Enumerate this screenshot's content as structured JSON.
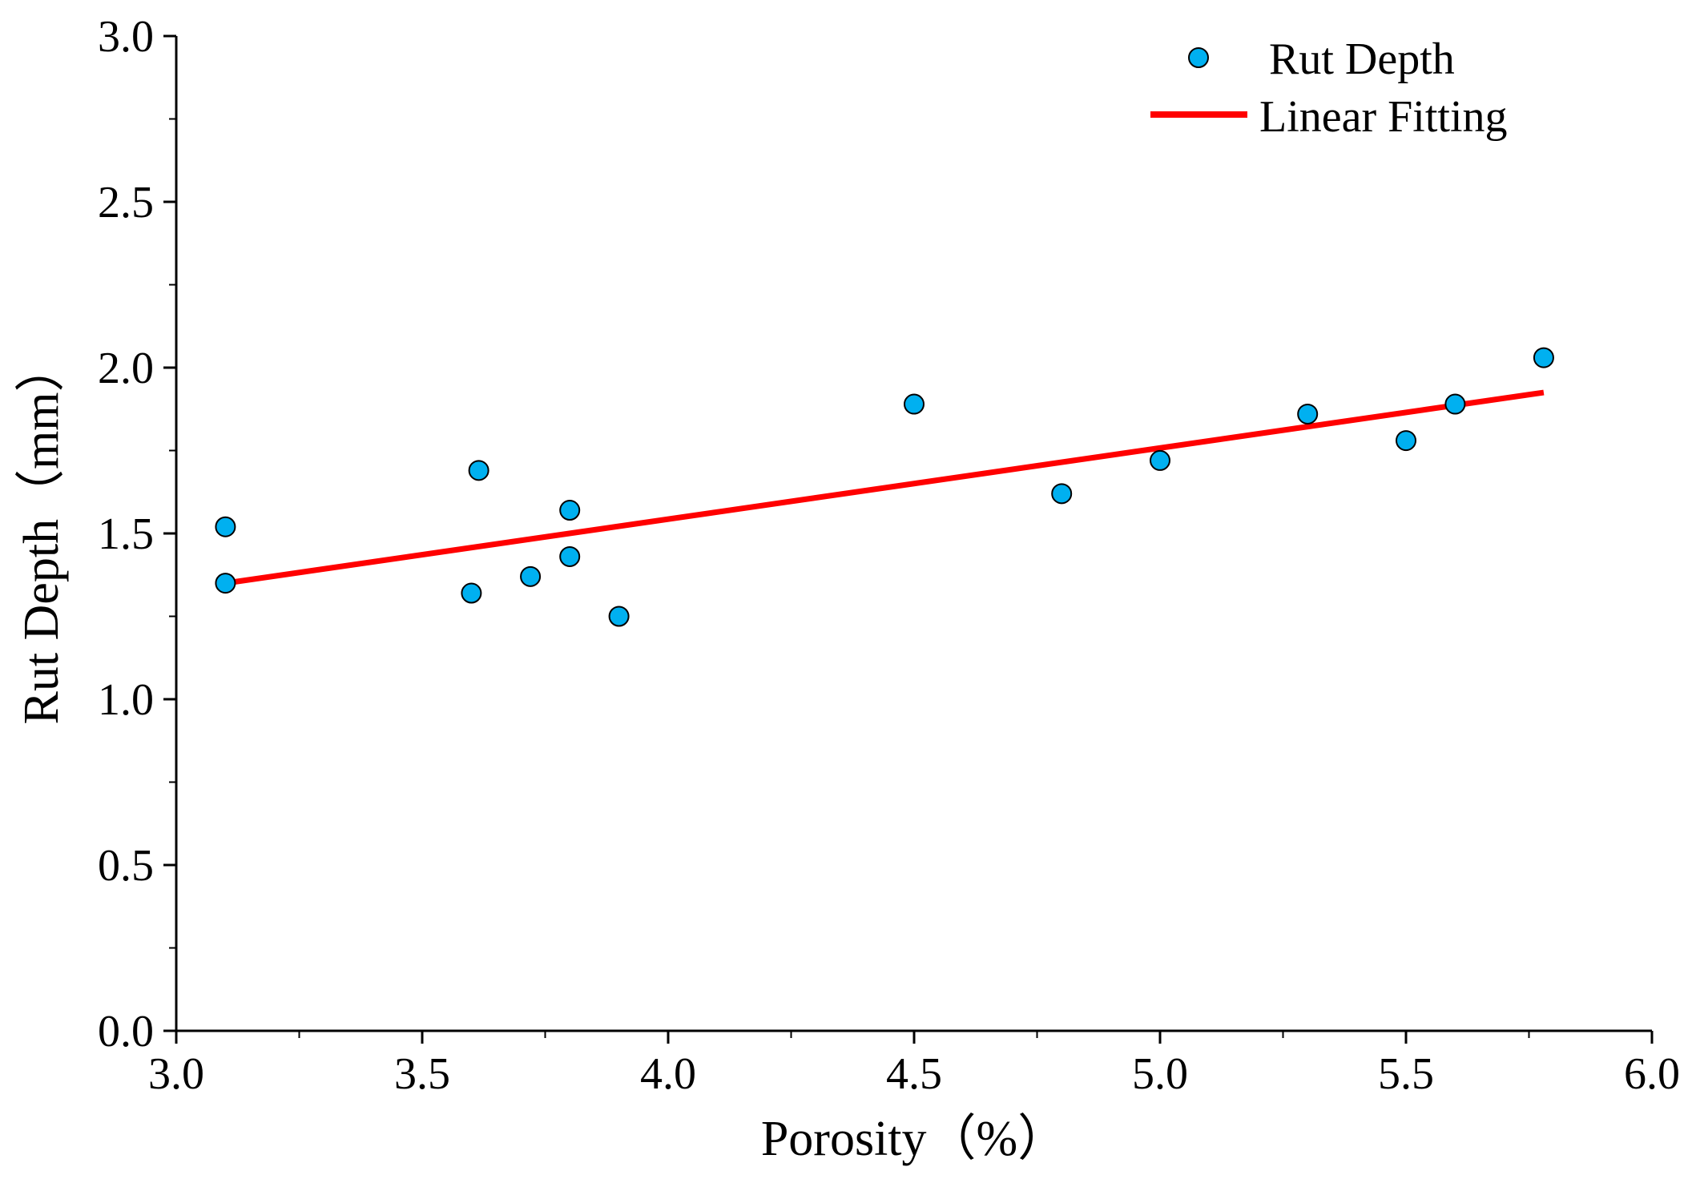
{
  "chart_data": {
    "type": "scatter",
    "title": "",
    "xlabel": "Porosity（%）",
    "ylabel": "Rut Depth（mm）",
    "xlim": [
      3.0,
      6.0
    ],
    "ylim": [
      0.0,
      3.0
    ],
    "x_ticks": [
      3.0,
      3.5,
      4.0,
      4.5,
      5.0,
      5.5,
      6.0
    ],
    "x_tick_labels": [
      "3.0",
      "3.5",
      "4.0",
      "4.5",
      "5.0",
      "5.5",
      "6.0"
    ],
    "y_ticks": [
      0.0,
      0.5,
      1.0,
      1.5,
      2.0,
      2.5,
      3.0
    ],
    "y_tick_labels": [
      "0.0",
      "0.5",
      "1.0",
      "1.5",
      "2.0",
      "2.5",
      "3.0"
    ],
    "grid": false,
    "legend_position": "top-right",
    "series": [
      {
        "name": "Rut Depth",
        "kind": "scatter",
        "color": "#00B0F0",
        "x": [
          3.1,
          3.1,
          3.6,
          3.615,
          3.72,
          3.8,
          3.8,
          3.9,
          4.5,
          4.8,
          5.0,
          5.3,
          5.5,
          5.6,
          5.78
        ],
        "y": [
          1.52,
          1.35,
          1.32,
          1.69,
          1.37,
          1.57,
          1.43,
          1.25,
          1.89,
          1.62,
          1.72,
          1.86,
          1.78,
          1.89,
          2.03
        ]
      },
      {
        "name": "Linear Fitting",
        "kind": "line",
        "color": "#FF0000",
        "x": [
          3.1,
          5.78
        ],
        "y": [
          1.35,
          1.925
        ]
      }
    ]
  }
}
